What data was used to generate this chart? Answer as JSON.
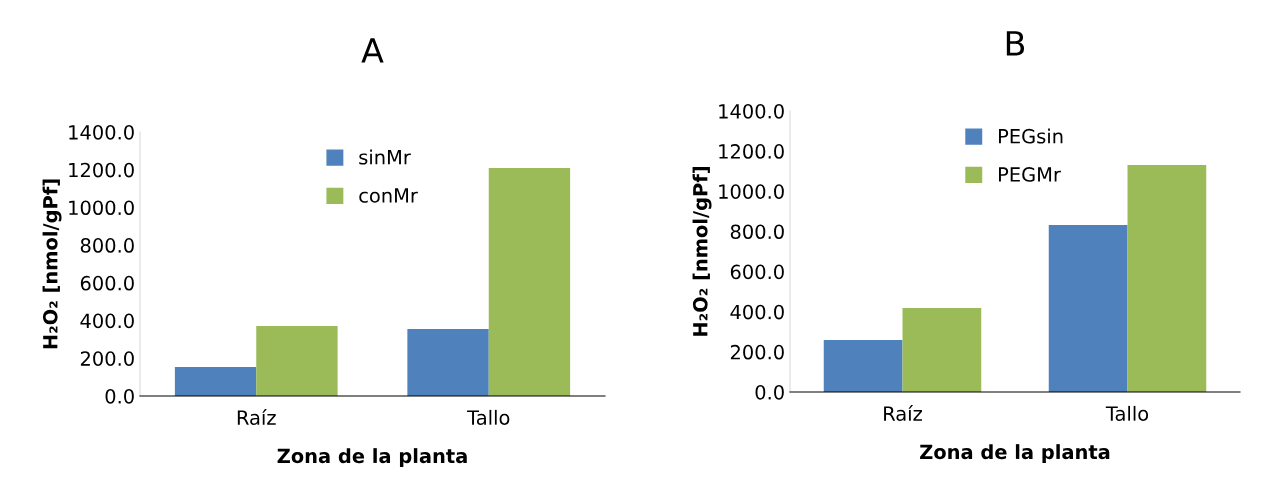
{
  "chart_data": [
    {
      "type": "bar",
      "title": "A",
      "xlabel": "Zona de la planta",
      "ylabel": "H₂O₂ [nmol/gPf]",
      "categories": [
        "Raíz",
        "Tallo"
      ],
      "series": [
        {
          "name": "sinMr",
          "color": "#4f81bd",
          "values": [
            154,
            355
          ]
        },
        {
          "name": "conMr",
          "color": "#9bbb59",
          "values": [
            371,
            1209
          ]
        }
      ],
      "ylim": [
        0,
        1400
      ],
      "yticks": [
        {
          "value": 0,
          "label": "0.0"
        },
        {
          "value": 200,
          "label": "200.0"
        },
        {
          "value": 400,
          "label": "400.0"
        },
        {
          "value": 600,
          "label": "600.0"
        },
        {
          "value": 800,
          "label": "800.0"
        },
        {
          "value": 1000,
          "label": "1000.0"
        },
        {
          "value": 1200,
          "label": "1200.0"
        },
        {
          "value": 1400,
          "label": "1400.0"
        }
      ],
      "grid": false,
      "legend": "top"
    },
    {
      "type": "bar",
      "title": "B",
      "xlabel": "Zona de la planta",
      "ylabel": "H₂O₂ [nmol/gPf]",
      "categories": [
        "Raíz",
        "Tallo"
      ],
      "series": [
        {
          "name": "PEGsin",
          "color": "#4f81bd",
          "values": [
            259,
            832
          ]
        },
        {
          "name": "PEGMr",
          "color": "#9bbb59",
          "values": [
            418,
            1131
          ]
        }
      ],
      "ylim": [
        0,
        1400
      ],
      "yticks": [
        {
          "value": 0,
          "label": "0.0"
        },
        {
          "value": 200,
          "label": "200.0"
        },
        {
          "value": 400,
          "label": "400.0"
        },
        {
          "value": 600,
          "label": "600.0"
        },
        {
          "value": 800,
          "label": "800.0"
        },
        {
          "value": 1000,
          "label": "1000.0"
        },
        {
          "value": 1200,
          "label": "1200.0"
        },
        {
          "value": 1400,
          "label": "1400.0"
        }
      ],
      "grid": false,
      "legend": "top"
    }
  ]
}
